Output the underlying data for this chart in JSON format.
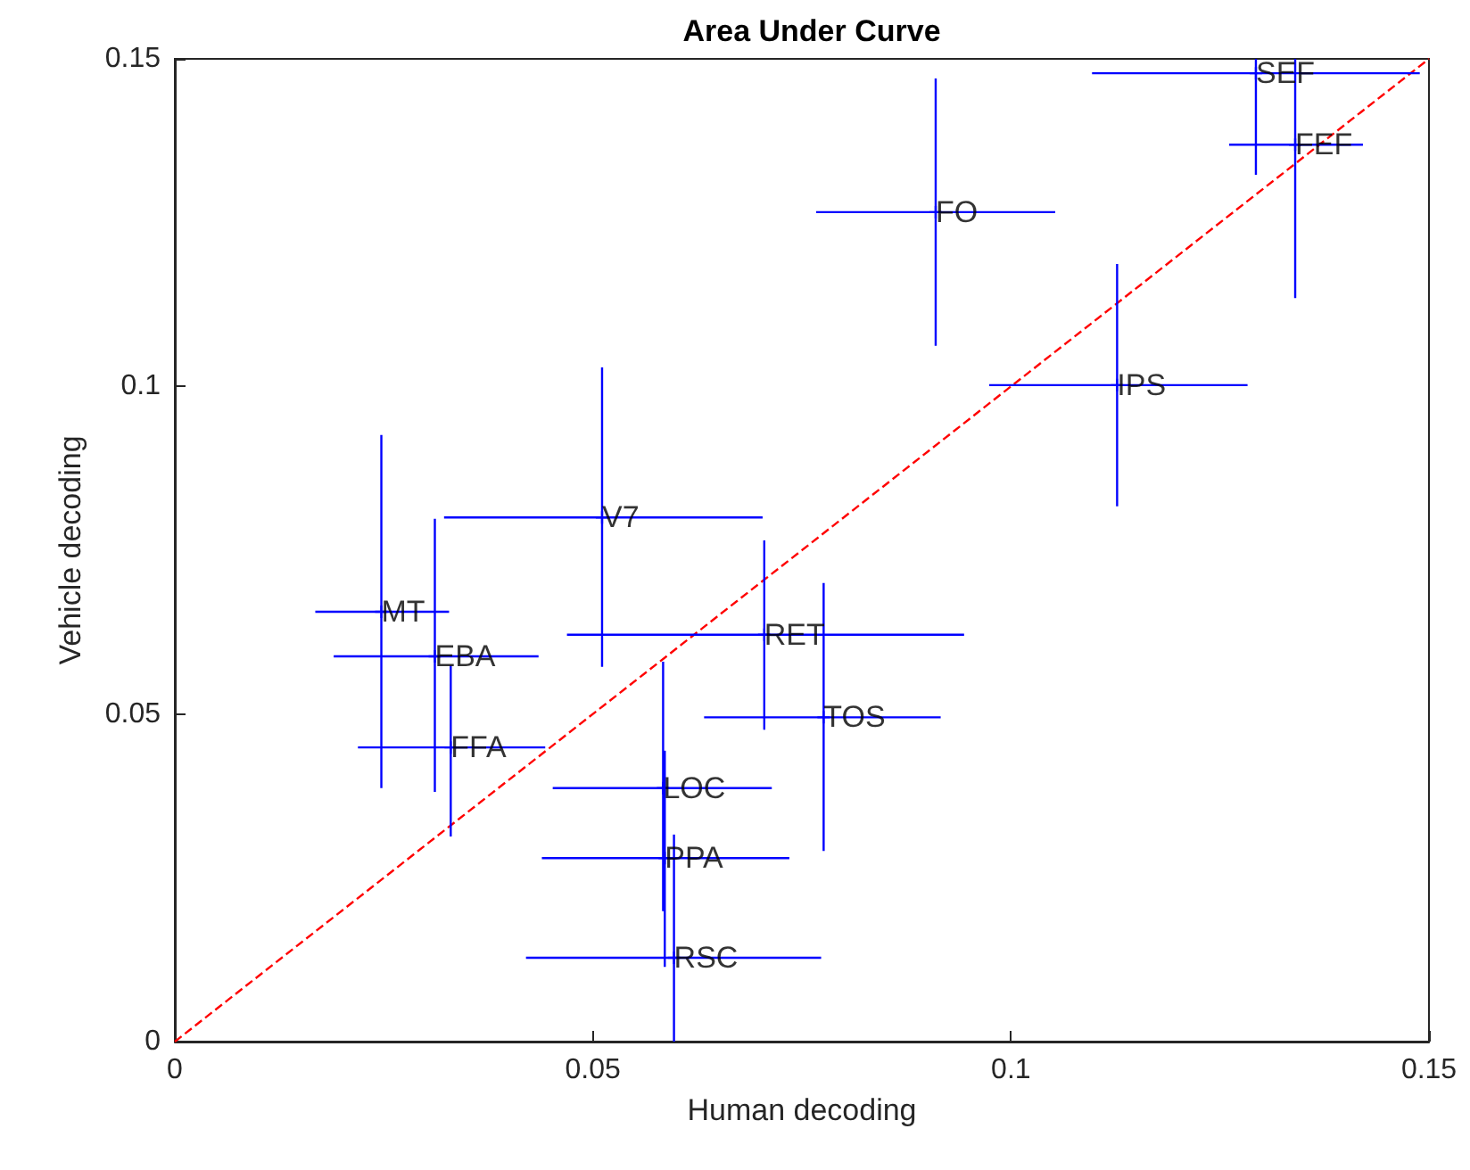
{
  "chart_data": {
    "type": "scatter",
    "title": "Area Under Curve",
    "xlabel": "Human decoding",
    "ylabel": "Vehicle decoding",
    "xlim": [
      0,
      0.15
    ],
    "ylim": [
      0,
      0.15
    ],
    "xticks": [
      0,
      0.05,
      0.1,
      0.15
    ],
    "yticks": [
      0,
      0.05,
      0.1,
      0.15
    ],
    "grid": false,
    "series": [
      {
        "color": "#0000ff",
        "marker": "cross",
        "x": [
          0.1293,
          0.134,
          0.091,
          0.1127,
          0.0511,
          0.0247,
          0.0311,
          0.033,
          0.0705,
          0.0776,
          0.0584,
          0.0586,
          0.0597
        ],
        "values": [
          0.1478,
          0.1369,
          0.1266,
          0.1002,
          0.08,
          0.0656,
          0.0588,
          0.0449,
          0.0621,
          0.0495,
          0.0387,
          0.028,
          0.0128
        ],
        "errors": [
          [
            0.1323,
            0.15
          ],
          [
            0.1135,
            0.15
          ],
          [
            0.1062,
            0.147
          ],
          [
            0.0817,
            0.1187
          ],
          [
            0.0572,
            0.1029
          ],
          [
            0.0387,
            0.0926
          ],
          [
            0.0381,
            0.0798
          ],
          [
            0.0313,
            0.0574
          ],
          [
            0.0476,
            0.0765
          ],
          [
            0.0291,
            0.07
          ],
          [
            0.0199,
            0.058
          ],
          [
            0.0114,
            0.0444
          ],
          [
            0,
            0.0316
          ]
        ],
        "xerrors": [
          [
            0.1097,
            0.1489
          ],
          [
            0.1261,
            0.1421
          ],
          [
            0.0767,
            0.1053
          ],
          [
            0.0974,
            0.1283
          ],
          [
            0.0322,
            0.0703
          ],
          [
            0.0168,
            0.0328
          ],
          [
            0.019,
            0.0435
          ],
          [
            0.0219,
            0.0443
          ],
          [
            0.0469,
            0.0944
          ],
          [
            0.0633,
            0.0916
          ],
          [
            0.0452,
            0.0714
          ],
          [
            0.0439,
            0.0735
          ],
          [
            0.042,
            0.0773
          ]
        ]
      },
      {
        "type": "line",
        "marker": "none",
        "color": "#ff0000",
        "line_style": "dashed",
        "x": [
          0,
          0.15
        ],
        "values": [
          0,
          0.15
        ]
      }
    ],
    "annotations": [
      {
        "text": "SEF",
        "x": 0.1293,
        "y": 0.1478
      },
      {
        "text": "FEF",
        "x": 0.134,
        "y": 0.1369
      },
      {
        "text": "FO",
        "x": 0.091,
        "y": 0.1266
      },
      {
        "text": "IPS",
        "x": 0.1127,
        "y": 0.1002
      },
      {
        "text": "V7",
        "x": 0.0511,
        "y": 0.08
      },
      {
        "text": "MT",
        "x": 0.0247,
        "y": 0.0656
      },
      {
        "text": "EBA",
        "x": 0.0311,
        "y": 0.0588
      },
      {
        "text": "FFA",
        "x": 0.033,
        "y": 0.0449
      },
      {
        "text": "RET",
        "x": 0.0705,
        "y": 0.0621
      },
      {
        "text": "TOS",
        "x": 0.0776,
        "y": 0.0495
      },
      {
        "text": "LOC",
        "x": 0.0584,
        "y": 0.0387
      },
      {
        "text": "PPA",
        "x": 0.0586,
        "y": 0.028
      },
      {
        "text": "RSC",
        "x": 0.0597,
        "y": 0.0128
      }
    ]
  }
}
